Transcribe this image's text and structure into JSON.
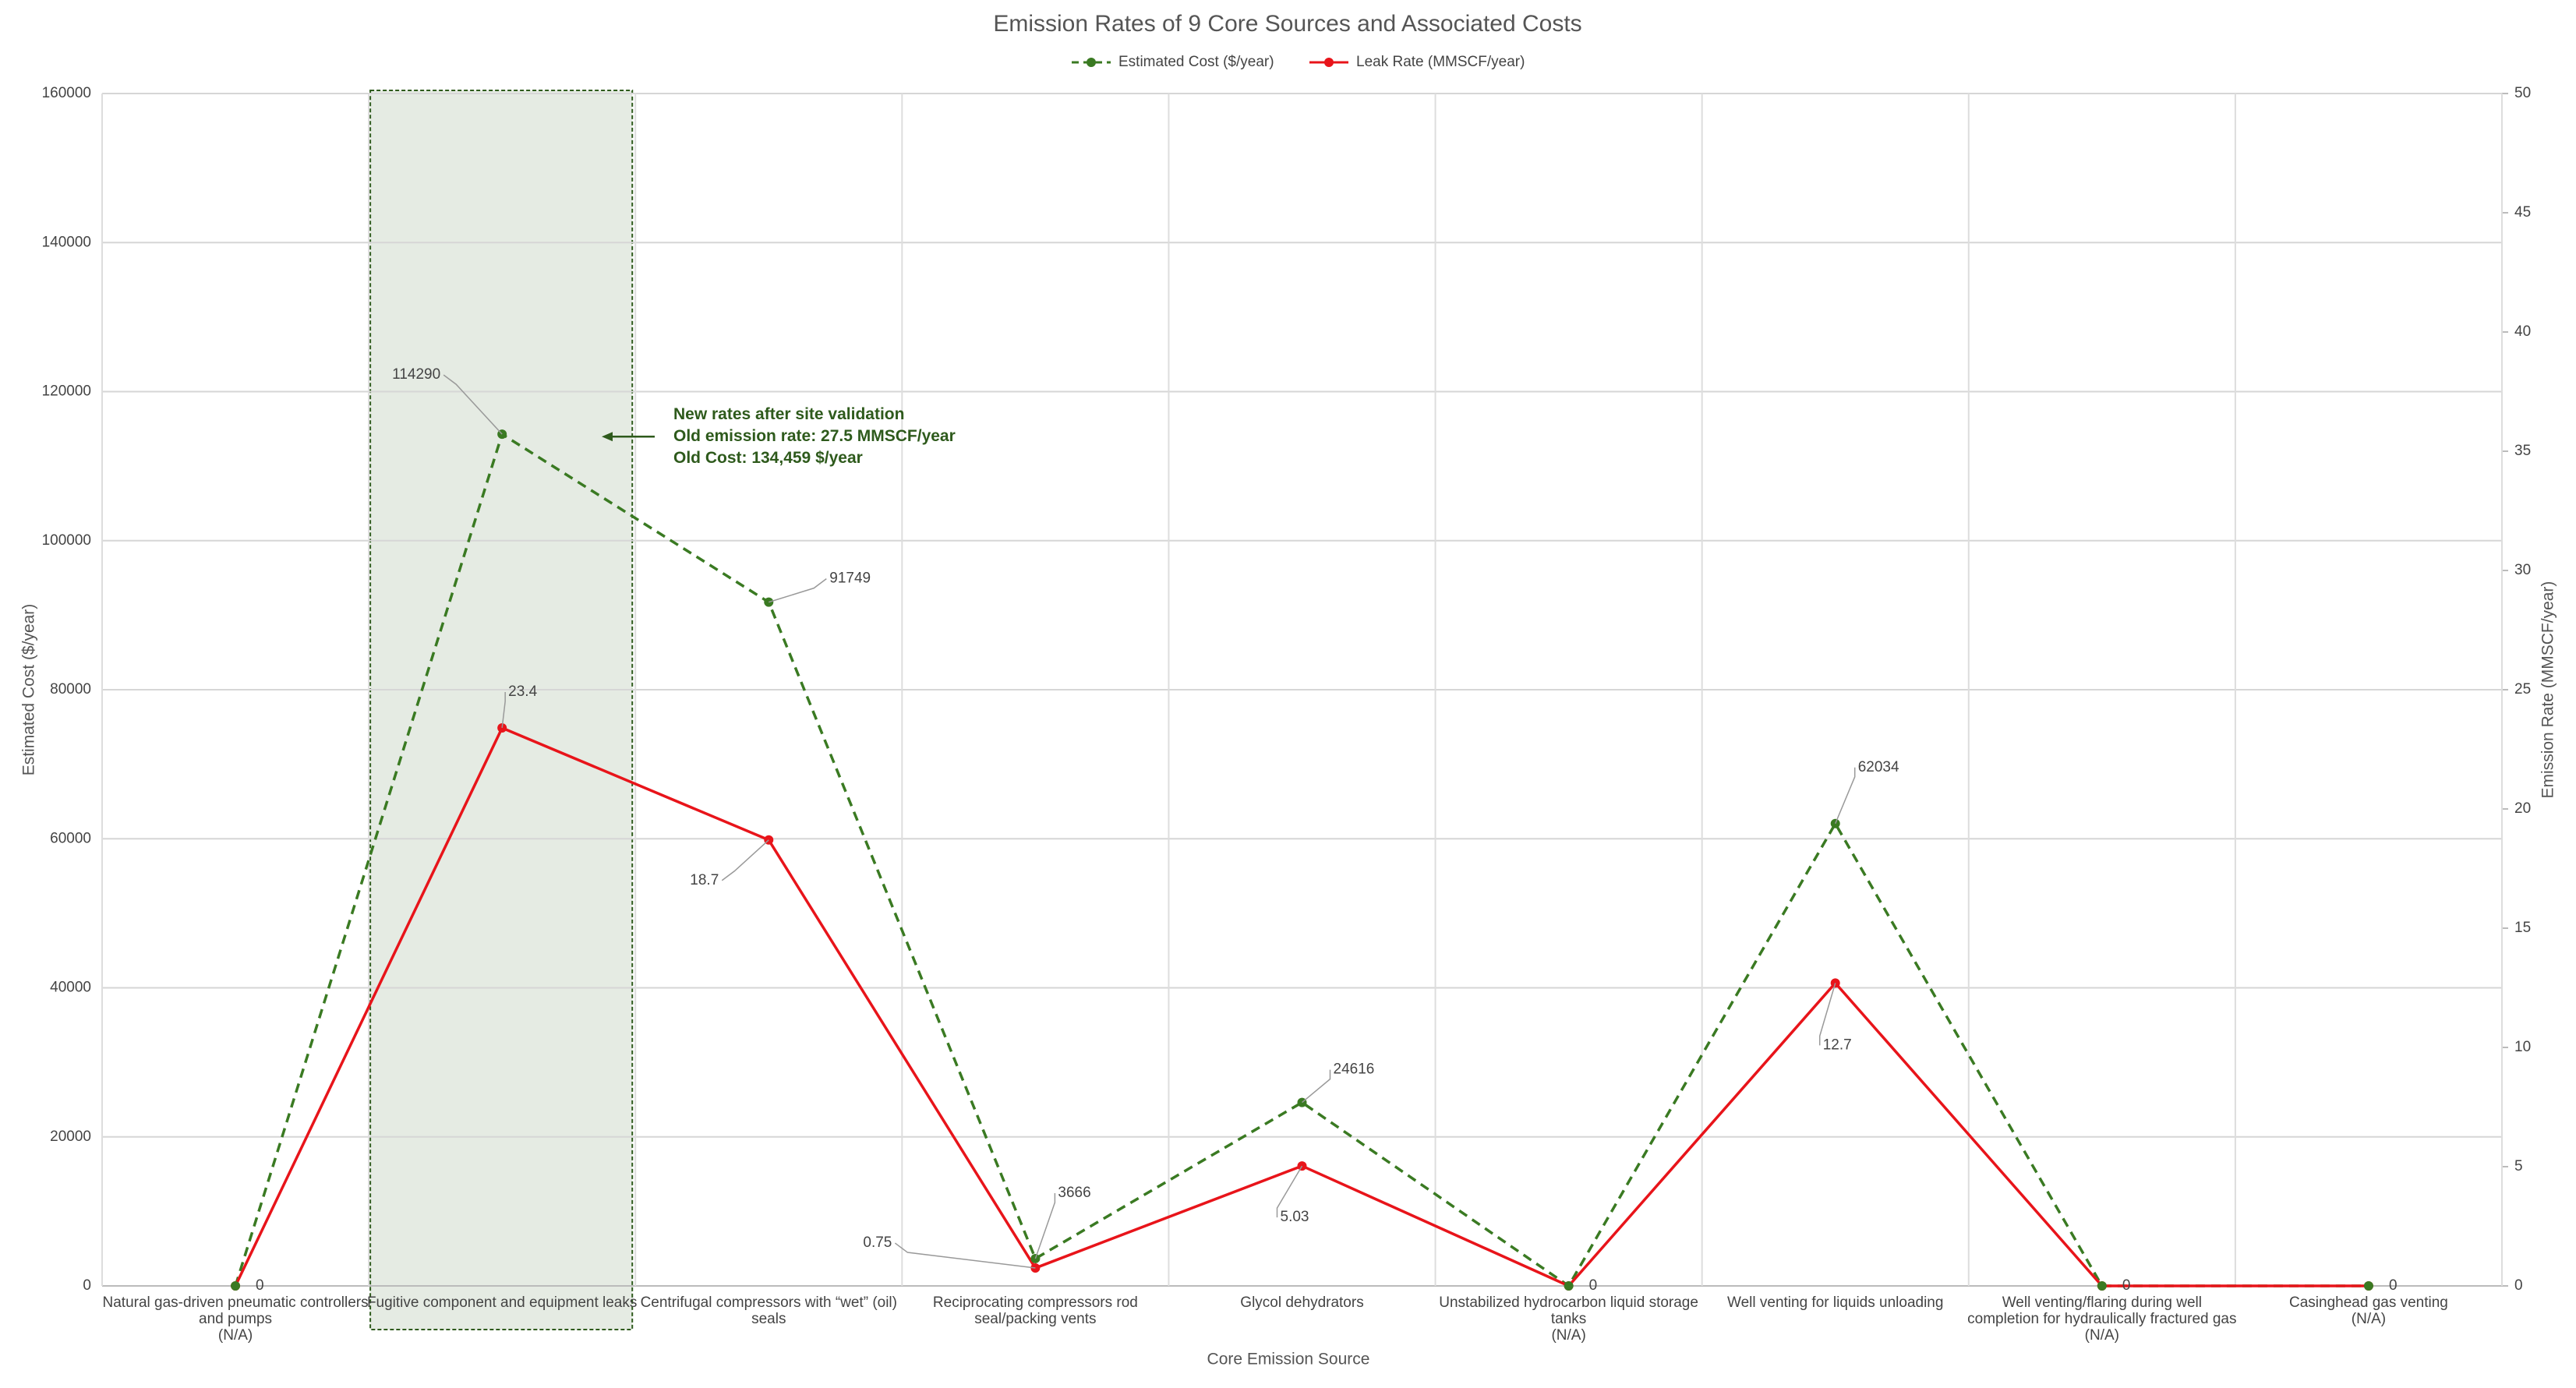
{
  "chart_data": {
    "type": "line",
    "title": "Emission Rates of 9 Core Sources and Associated Costs",
    "x_label": "Core Emission Source",
    "y_label": "Estimated Cost ($/year)",
    "y2_label": "Emission Rate (MMSCF/year)",
    "categories": [
      "Natural gas-driven pneumatic controllers\nand pumps\n(N/A)",
      "Fugitive component and equipment leaks",
      "Centrifugal compressors with “wet” (oil)\nseals",
      "Reciprocating compressors rod\nseal/packing vents",
      "Glycol dehydrators",
      "Unstabilized hydrocarbon liquid storage\ntanks\n(N/A)",
      "Well venting for liquids unloading",
      "Well venting/flaring during well\ncompletion for hydraulically fractured gas\n(N/A)",
      "Casinghead gas venting\n(N/A)"
    ],
    "series": [
      {
        "name": "Estimated Cost ($/year)",
        "color": "#3a7a22",
        "dashed": true,
        "axis": "y",
        "values": [
          0,
          114290,
          91749,
          3666,
          24616,
          0,
          62034,
          0,
          0
        ],
        "data_labels": [
          false,
          true,
          true,
          true,
          true,
          false,
          true,
          false,
          false
        ]
      },
      {
        "name": "Leak Rate (MMSCF/year)",
        "color": "#e8141a",
        "dashed": false,
        "axis": "y2",
        "values": [
          0,
          23.4,
          18.7,
          0.75,
          5.03,
          0,
          12.7,
          0,
          0
        ],
        "data_labels": [
          true,
          true,
          true,
          true,
          true,
          true,
          true,
          true,
          true
        ]
      }
    ],
    "ylim": [
      0,
      160000
    ],
    "yticks": [
      0,
      20000,
      40000,
      60000,
      80000,
      100000,
      120000,
      140000,
      160000
    ],
    "y2lim": [
      0,
      50
    ],
    "y2ticks": [
      0,
      5,
      10,
      15,
      20,
      25,
      30,
      35,
      40,
      45,
      50
    ],
    "grid": true,
    "legend": "top",
    "annotation": {
      "text": "New rates after site validation\nOld emission rate: 27.5 MMSCF/year\nOld Cost:  134,459 $/year",
      "color": "#2e5a1c"
    },
    "highlight_category": 1
  }
}
